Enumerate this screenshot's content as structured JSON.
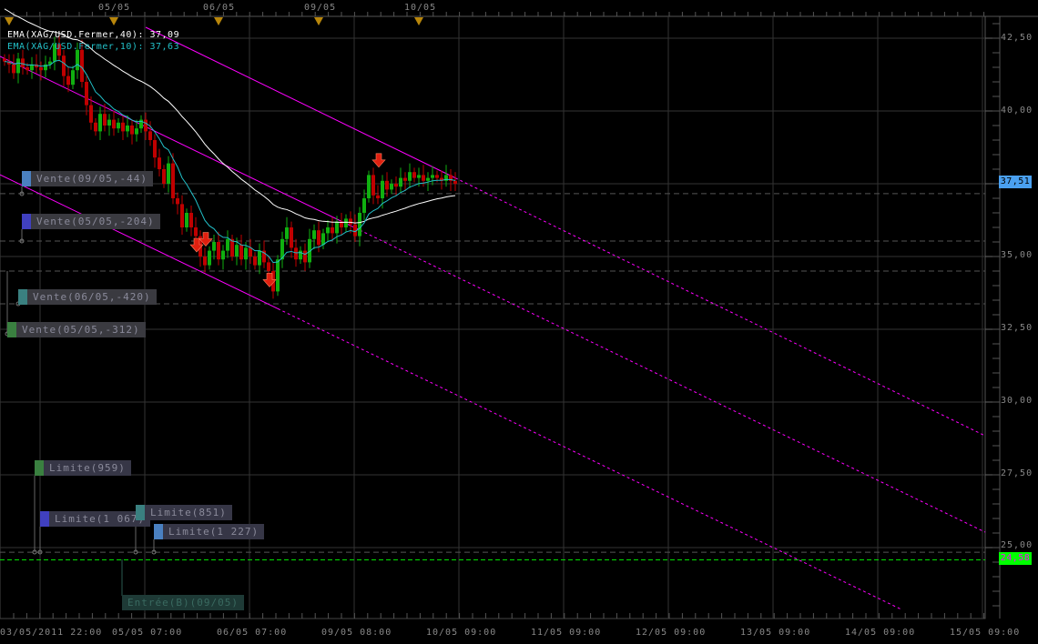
{
  "chart_data": {
    "type": "candlestick",
    "instrument": "XAG/USD",
    "ylim": [
      23.0,
      43.2
    ],
    "y_ticks": [
      "42,50",
      "40,00",
      "37,50",
      "35,00",
      "32,50",
      "30,00",
      "27,50",
      "25,00"
    ],
    "y_tick_values": [
      42.5,
      40,
      37.5,
      35,
      32.5,
      30,
      27.5,
      25
    ],
    "x_tick_labels": [
      "03/05/2011 22:00",
      "05/05 07:00",
      "06/05 07:00",
      "09/05 08:00",
      "10/05 09:00",
      "11/05 09:00",
      "12/05 09:00",
      "13/05 09:00",
      "14/05 09:00",
      "15/05 09:00"
    ],
    "top_date_labels": [
      "05/05",
      "06/05",
      "09/05",
      "10/05"
    ],
    "closes": [
      41.7,
      41.6,
      41.3,
      41.8,
      41.5,
      41.4,
      41.6,
      41.5,
      41.4,
      41.6,
      41.7,
      42.3,
      41.9,
      41.2,
      40.9,
      41.4,
      42.1,
      41.0,
      40.2,
      39.6,
      39.3,
      39.9,
      39.5,
      39.7,
      39.4,
      39.6,
      39.3,
      39.5,
      39.2,
      39.4,
      39.7,
      39.3,
      39.0,
      38.4,
      38.0,
      37.5,
      38.2,
      37.0,
      36.8,
      36.0,
      36.5,
      36.0,
      35.7,
      35.0,
      34.7,
      35.2,
      35.5,
      34.9,
      35.2,
      35.6,
      35.0,
      35.4,
      34.9,
      35.3,
      35.0,
      34.7,
      35.2,
      34.8,
      34.5,
      33.8,
      34.9,
      35.6,
      36.0,
      35.3,
      34.9,
      35.2,
      34.8,
      35.6,
      35.9,
      35.4,
      35.8,
      36.0,
      35.8,
      36.2,
      36.0,
      36.3,
      36.1,
      35.7,
      36.5,
      37.0,
      37.8,
      37.1,
      37.0,
      37.6,
      37.3,
      37.5,
      37.4,
      37.7,
      37.6,
      37.9,
      37.7,
      37.8,
      37.6,
      37.7,
      37.8,
      37.7,
      37.6,
      37.8,
      37.6,
      37.5
    ],
    "indicators": [
      {
        "name": "EMA(XAG/USD.Fermer,40)",
        "value": "37,09",
        "color": "#ffffff",
        "period": 40
      },
      {
        "name": "EMA(XAG/USD.Fermer,10)",
        "value": "37,63",
        "color": "#22c0c8",
        "period": 10
      }
    ],
    "trend_lines": [
      {
        "points": [
          [
            31,
            42.875
          ],
          [
            215.4,
            28.84
          ]
        ],
        "solid_until": 99
      },
      {
        "points": [
          [
            -1,
            41.875
          ],
          [
            215.4,
            25.53
          ]
        ],
        "solid_until": 78
      },
      {
        "points": [
          [
            -1,
            37.81
          ],
          [
            197,
            22.875
          ]
        ],
        "solid_until": 60
      }
    ],
    "sell_signals": [
      43,
      45,
      59,
      83
    ],
    "order_levels": [
      37.16,
      35.53,
      34.5,
      33.375,
      24.84
    ],
    "current_price": "37,51",
    "entry_price": "24,58",
    "entry_level": 24.58,
    "colors": {
      "up": "#10b010",
      "down": "#c00000",
      "channel": "#ff00ff",
      "entry": "#00ff00",
      "price_tag": "#4aa0f0"
    }
  },
  "orders": [
    {
      "label": "Vente(09/05,-44)",
      "color": "#4a80c0"
    },
    {
      "label": "Vente(05/05,-204)",
      "color": "#4040c0"
    },
    {
      "label": "Vente(06/05,-420)",
      "color": "#3a8080"
    },
    {
      "label": "Vente(05/05,-312)",
      "color": "#3a8040"
    },
    {
      "label": "Limite(959)",
      "color": "#3a8040"
    },
    {
      "label": "Limite(1 067)",
      "color": "#4040c0"
    },
    {
      "label": "Limite(851)",
      "color": "#3a8080"
    },
    {
      "label": "Limite(1 227)",
      "color": "#4a80c0"
    },
    {
      "label": "Entrée(B)(09/05)",
      "color": "#1e3a36"
    }
  ]
}
